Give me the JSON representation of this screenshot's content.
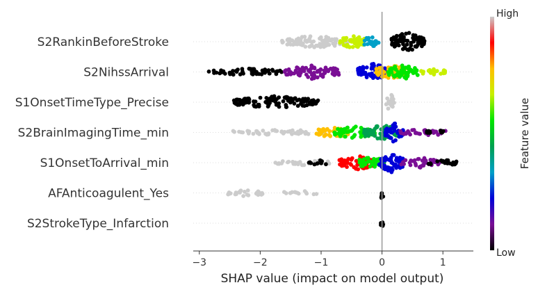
{
  "chart_data": {
    "type": "scatter",
    "subtype": "shap-beeswarm",
    "title": "",
    "xlabel": "SHAP value (impact on model output)",
    "ylabel": "",
    "xlim": [
      -3.1,
      1.5
    ],
    "xticks": [
      -3,
      -2,
      -1,
      0,
      1
    ],
    "xtick_labels": [
      "−3",
      "−2",
      "−1",
      "0",
      "1"
    ],
    "zero_line": 0,
    "grid": false,
    "colorbar": {
      "label": "Feature value",
      "high_label": "High",
      "low_label": "Low",
      "colors": [
        "#000000",
        "#7a0f95",
        "#0000d8",
        "#00a0c8",
        "#00a050",
        "#00e600",
        "#c8f000",
        "#ffc000",
        "#ff0000",
        "#cccccc"
      ]
    },
    "features": [
      {
        "name": "S2RankinBeforeStroke",
        "segments": [
          {
            "from": -1.65,
            "to": -0.55,
            "color": "#cccccc",
            "density": 0.6
          },
          {
            "from": -0.7,
            "to": -0.28,
            "color": "#c8f000",
            "density": 0.7
          },
          {
            "from": -0.3,
            "to": -0.05,
            "color": "#00a0c8",
            "density": 0.6
          },
          {
            "from": 0.15,
            "to": 0.7,
            "color": "#000000",
            "density": 1.0
          }
        ]
      },
      {
        "name": "S2NihssArrival",
        "segments": [
          {
            "from": -2.85,
            "to": -1.6,
            "color": "#000000",
            "density": 0.3
          },
          {
            "from": -1.6,
            "to": -0.7,
            "color": "#7a0f95",
            "density": 0.7
          },
          {
            "from": -0.4,
            "to": 0.1,
            "color": "#0000d8",
            "density": 0.9
          },
          {
            "from": -0.1,
            "to": 0.4,
            "color": "#ffc000",
            "density": 0.8
          },
          {
            "from": 0.1,
            "to": 0.6,
            "color": "#00e600",
            "density": 0.8
          },
          {
            "from": 0.6,
            "to": 1.05,
            "color": "#c8f000",
            "density": 0.3
          }
        ]
      },
      {
        "name": "S1OnsetTimeType_Precise",
        "segments": [
          {
            "from": -2.45,
            "to": -1.05,
            "color": "#000000",
            "density": 0.6
          },
          {
            "from": 0.05,
            "to": 0.2,
            "color": "#cccccc",
            "density": 1.0
          }
        ]
      },
      {
        "name": "S2BrainImagingTime_min",
        "segments": [
          {
            "from": -2.45,
            "to": -0.95,
            "color": "#cccccc",
            "density": 0.25
          },
          {
            "from": -1.1,
            "to": -0.55,
            "color": "#ffc000",
            "density": 0.5
          },
          {
            "from": -0.8,
            "to": -0.1,
            "color": "#00e600",
            "density": 0.6
          },
          {
            "from": -0.3,
            "to": 0.3,
            "color": "#00a050",
            "density": 0.8
          },
          {
            "from": 0.05,
            "to": 0.35,
            "color": "#0000d8",
            "density": 1.0
          },
          {
            "from": 0.3,
            "to": 1.05,
            "color": "#7a0f95",
            "density": 0.35
          },
          {
            "from": 0.7,
            "to": 1.05,
            "color": "#000000",
            "density": 0.2
          }
        ]
      },
      {
        "name": "S1OnsetToArrival_min",
        "segments": [
          {
            "from": -1.8,
            "to": -0.85,
            "color": "#cccccc",
            "density": 0.2
          },
          {
            "from": -1.2,
            "to": -0.85,
            "color": "#000000",
            "density": 0.2
          },
          {
            "from": -0.7,
            "to": -0.1,
            "color": "#ff0000",
            "density": 0.7
          },
          {
            "from": -0.4,
            "to": 0.05,
            "color": "#00e600",
            "density": 0.6
          },
          {
            "from": -0.05,
            "to": 0.35,
            "color": "#0000d8",
            "density": 1.0
          },
          {
            "from": 0.3,
            "to": 0.95,
            "color": "#7a0f95",
            "density": 0.5
          },
          {
            "from": 0.75,
            "to": 1.25,
            "color": "#000000",
            "density": 0.3
          }
        ]
      },
      {
        "name": "AFAnticoagulent_Yes",
        "segments": [
          {
            "from": -2.55,
            "to": -1.95,
            "color": "#cccccc",
            "density": 0.3
          },
          {
            "from": -1.65,
            "to": -1.05,
            "color": "#cccccc",
            "density": 0.15
          },
          {
            "from": -0.02,
            "to": 0.02,
            "color": "#000000",
            "density": 1.0
          }
        ]
      },
      {
        "name": "S2StrokeType_Infarction",
        "segments": [
          {
            "from": -0.02,
            "to": 0.02,
            "color": "#000000",
            "density": 1.0
          }
        ]
      }
    ]
  }
}
